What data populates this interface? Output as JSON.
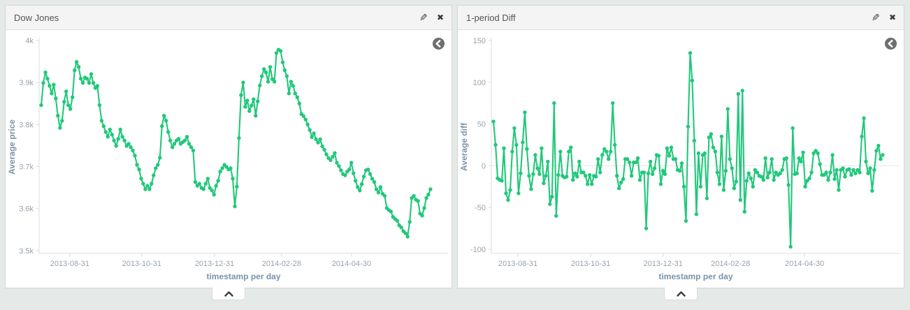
{
  "page": {
    "background": "#e5e9e7"
  },
  "panels": [
    {
      "title": "Dow Jones",
      "edit_icon": "pencil-icon",
      "close_icon": "x-icon",
      "back_icon": "circle-arrow-left-icon",
      "collapse_icon": "chevron-up-icon"
    },
    {
      "title": "1-period Diff",
      "edit_icon": "pencil-icon",
      "close_icon": "x-icon",
      "back_icon": "circle-arrow-left-icon",
      "collapse_icon": "chevron-up-icon"
    }
  ],
  "chart_data": [
    {
      "type": "line",
      "title": "Dow Jones",
      "xlabel": "timestamp per day",
      "ylabel": "Average price",
      "color": "#21c87a",
      "ylim": [
        3493,
        4000
      ],
      "yticks": {
        "values": [
          3500,
          3600,
          3700,
          3800,
          3900,
          4000
        ],
        "labels": [
          "3.5k",
          "3.6k",
          "3.7k",
          "3.8k",
          "3.9k",
          "4k"
        ]
      },
      "xticks": {
        "labels": [
          "2013-08-31",
          "2013-10-31",
          "2013-12-31",
          "2014-02-28",
          "2014-04-30"
        ],
        "positions": [
          0.075,
          0.251,
          0.429,
          0.593,
          0.764
        ]
      },
      "zero_line": false,
      "x_span_fraction": 0.952,
      "values": [
        3846,
        3899,
        3924,
        3909,
        3892,
        3874,
        3895,
        3862,
        3821,
        3792,
        3809,
        3854,
        3879,
        3846,
        3837,
        3865,
        3929,
        3949,
        3937,
        3909,
        3899,
        3912,
        3909,
        3899,
        3920,
        3899,
        3887,
        3892,
        3846,
        3809,
        3796,
        3782,
        3771,
        3788,
        3776,
        3762,
        3749,
        3766,
        3788,
        3771,
        3762,
        3749,
        3754,
        3746,
        3738,
        3726,
        3704,
        3693,
        3671,
        3659,
        3646,
        3654,
        3646,
        3659,
        3679,
        3696,
        3704,
        3721,
        3796,
        3821,
        3809,
        3782,
        3762,
        3746,
        3754,
        3762,
        3766,
        3754,
        3758,
        3762,
        3771,
        3754,
        3746,
        3738,
        3663,
        3654,
        3659,
        3649,
        3646,
        3659,
        3671,
        3649,
        3643,
        3633,
        3654,
        3666,
        3688,
        3696,
        3704,
        3699,
        3693,
        3696,
        3671,
        3605,
        3652,
        3768,
        3870,
        3900,
        3842,
        3857,
        3832,
        3845,
        3860,
        3821,
        3855,
        3893,
        3915,
        3932,
        3924,
        3902,
        3937,
        3908,
        3902,
        3970,
        3978,
        3975,
        3948,
        3929,
        3915,
        3874,
        3902,
        3892,
        3874,
        3865,
        3850,
        3825,
        3820,
        3812,
        3800,
        3787,
        3770,
        3779,
        3765,
        3757,
        3765,
        3748,
        3740,
        3729,
        3720,
        3715,
        3723,
        3732,
        3709,
        3701,
        3691,
        3682,
        3679,
        3688,
        3693,
        3709,
        3684,
        3666,
        3651,
        3643,
        3658,
        3676,
        3691,
        3693,
        3682,
        3671,
        3663,
        3646,
        3638,
        3651,
        3635,
        3630,
        3601,
        3596,
        3593,
        3580,
        3575,
        3571,
        3560,
        3555,
        3546,
        3541,
        3533,
        3568,
        3625,
        3630,
        3621,
        3618,
        3588,
        3583,
        3601,
        3625,
        3633,
        3646
      ]
    },
    {
      "type": "line",
      "title": "1-period Diff",
      "xlabel": "timestamp per day",
      "ylabel": "Average diff",
      "color": "#21c87a",
      "ylim": [
        -105,
        150
      ],
      "yticks": {
        "values": [
          -100,
          -50,
          0,
          50,
          100,
          150
        ],
        "labels": [
          "-100",
          "-50",
          "0",
          "50",
          "100",
          "150"
        ]
      },
      "xticks": {
        "labels": [
          "2013-08-31",
          "2013-10-31",
          "2013-12-31",
          "2014-02-28",
          "2014-04-30"
        ],
        "positions": [
          0.065,
          0.243,
          0.42,
          0.585,
          0.766
        ]
      },
      "zero_line": true,
      "x_span_fraction": 0.952,
      "values": [
        53,
        25,
        -15,
        -17,
        -18,
        21,
        -33,
        -41,
        -29,
        17,
        45,
        25,
        -33,
        -9,
        28,
        64,
        20,
        -12,
        -28,
        -10,
        13,
        -3,
        -10,
        21,
        -21,
        -12,
        5,
        -46,
        -37,
        75,
        -60,
        -11,
        17,
        -12,
        -14,
        -13,
        17,
        22,
        -17,
        -9,
        -13,
        5,
        -8,
        -8,
        -12,
        -22,
        -11,
        -22,
        -12,
        -13,
        8,
        -8,
        13,
        20,
        17,
        8,
        17,
        75,
        25,
        -12,
        -27,
        -20,
        -16,
        8,
        8,
        4,
        -12,
        4,
        4,
        9,
        -17,
        -8,
        -8,
        -75,
        -9,
        5,
        -10,
        -3,
        13,
        12,
        -22,
        -6,
        -10,
        21,
        12,
        22,
        8,
        8,
        -5,
        -6,
        3,
        -25,
        -66,
        47,
        135,
        102,
        30,
        -58,
        15,
        -25,
        13,
        15,
        -39,
        34,
        38,
        22,
        17,
        -8,
        -22,
        35,
        -29,
        -6,
        68,
        8,
        -3,
        -27,
        -19,
        86,
        -41,
        90,
        -55,
        -18,
        -9,
        -15,
        -25,
        -5,
        -8,
        -12,
        -13,
        -17,
        9,
        -14,
        -8,
        8,
        -17,
        -8,
        -11,
        -9,
        -5,
        8,
        9,
        -23,
        -97,
        45,
        -10,
        -9,
        9,
        5,
        16,
        -25,
        -18,
        -15,
        -8,
        15,
        18,
        15,
        2,
        -11,
        -11,
        -8,
        -17,
        -8,
        13,
        -16,
        -5,
        -29,
        -5,
        -3,
        -13,
        -5,
        -4,
        -11,
        -5,
        -9,
        -5,
        -8,
        35,
        57,
        5,
        -9,
        -3,
        -30,
        -5,
        18,
        24,
        8,
        13
      ]
    }
  ]
}
